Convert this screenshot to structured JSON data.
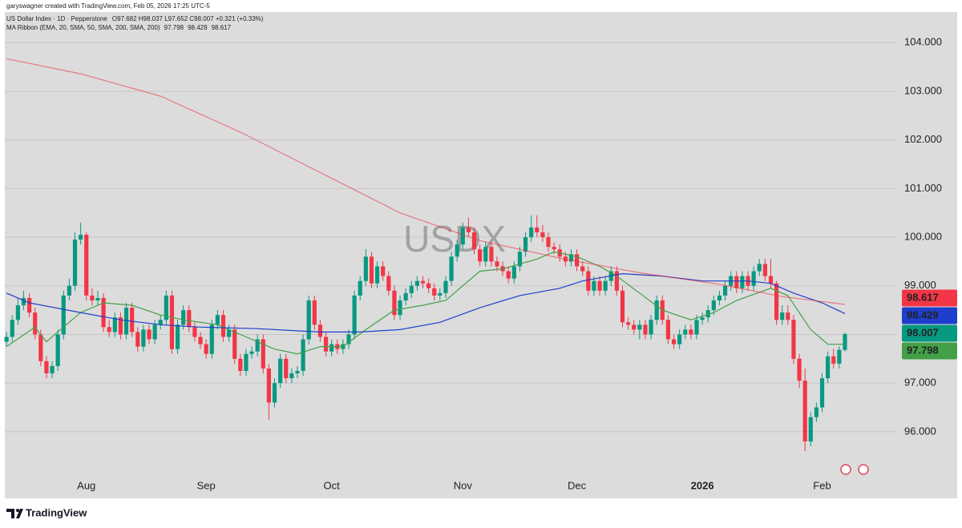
{
  "header": {
    "author": "garyswagner created with TradingView.com, Feb 05, 2026 17:25 UTC-5"
  },
  "footer": {
    "logo_text": "TradingView"
  },
  "chart_data": {
    "type": "candlestick",
    "title": "US Dollar Index · 1D · Pepperstone",
    "ohlc_text": "O97.682 H98.037 L97.652 C98.007 +0.321 (+0.33%)",
    "indicator": "MA Ribbon (EMA, 20, SMA, 50, SMA, 200, SMA, 200)",
    "watermark": "USDX",
    "up_color": "#089981",
    "down_color": "#f23645",
    "xlim": [
      -0.3,
      156
    ],
    "xticks": [
      {
        "value": 14,
        "label": "Aug"
      },
      {
        "value": 35,
        "label": "Sep"
      },
      {
        "value": 57,
        "label": "Oct"
      },
      {
        "value": 80,
        "label": "Nov"
      },
      {
        "value": 100,
        "label": "Dec"
      },
      {
        "value": 122,
        "label": "2026"
      },
      {
        "value": 143,
        "label": "Feb"
      }
    ],
    "ylim": [
      94.63,
      104.63
    ],
    "yticks": [
      {
        "value": 96,
        "label": "96.000"
      },
      {
        "value": 97,
        "label": "97.000"
      },
      {
        "value": 98,
        "label": "98.000"
      },
      {
        "value": 99,
        "label": "99.000"
      },
      {
        "value": 100,
        "label": "100.000"
      },
      {
        "value": 101,
        "label": "101.000"
      },
      {
        "value": 102,
        "label": "102.000"
      },
      {
        "value": 103,
        "label": "103.000"
      },
      {
        "value": 104,
        "label": "104.000"
      }
    ],
    "grid": true,
    "candles": {
      "open": [
        97.85,
        97.95,
        98.3,
        98.6,
        98.75,
        98.45,
        98.0,
        97.45,
        97.2,
        97.35,
        98.0,
        98.8,
        99.0,
        99.95,
        100.05,
        98.8,
        98.7,
        98.75,
        98.15,
        98.05,
        98.35,
        98.0,
        98.55,
        98.05,
        97.75,
        98.1,
        97.9,
        98.2,
        98.3,
        98.8,
        97.7,
        98.2,
        98.5,
        98.15,
        97.95,
        97.8,
        97.6,
        98.2,
        98.4,
        97.95,
        98.1,
        97.5,
        97.25,
        97.6,
        97.65,
        97.9,
        97.3,
        96.6,
        97.0,
        97.5,
        97.1,
        97.2,
        97.25,
        97.9,
        98.7,
        98.2,
        97.95,
        97.65,
        97.8,
        97.7,
        97.8,
        98.0,
        98.8,
        99.1,
        99.6,
        99.05,
        99.4,
        99.2,
        98.9,
        98.4,
        98.7,
        98.85,
        99.0,
        99.1,
        99.05,
        98.95,
        98.8,
        98.85,
        99.1,
        99.6,
        99.85,
        100.2,
        100.1,
        99.75,
        99.5,
        99.8,
        99.5,
        99.4,
        99.3,
        99.15,
        99.4,
        99.7,
        100.0,
        100.2,
        100.1,
        100.0,
        99.8,
        99.75,
        99.6,
        99.5,
        99.65,
        99.4,
        99.3,
        98.9,
        99.1,
        98.9,
        99.1,
        99.3,
        98.9,
        98.25,
        98.2,
        98.1,
        98.2,
        98.0,
        98.3,
        98.7,
        98.3,
        97.9,
        97.8,
        98.0,
        98.1,
        98.0,
        98.3,
        98.35,
        98.5,
        98.7,
        98.8,
        99.0,
        99.2,
        98.95,
        99.2,
        99.0,
        99.3,
        99.45,
        99.2,
        99.05,
        98.3,
        98.45,
        98.3,
        97.5,
        97.05,
        95.8,
        96.3,
        96.5,
        97.1,
        97.55,
        97.4,
        97.682
      ],
      "high": [
        98.05,
        98.4,
        98.75,
        98.9,
        98.85,
        98.55,
        98.1,
        97.55,
        97.45,
        98.1,
        98.9,
        99.15,
        100.1,
        100.3,
        100.1,
        98.95,
        98.9,
        98.85,
        98.3,
        98.45,
        98.45,
        98.65,
        98.65,
        98.15,
        98.2,
        98.2,
        98.3,
        98.4,
        98.9,
        98.9,
        98.3,
        98.6,
        98.6,
        98.25,
        98.05,
        97.9,
        98.3,
        98.5,
        98.5,
        98.2,
        98.2,
        97.6,
        97.7,
        97.75,
        98.0,
        98.0,
        97.4,
        97.1,
        97.6,
        97.6,
        97.3,
        97.35,
        98.0,
        98.8,
        98.8,
        98.3,
        98.05,
        97.9,
        97.9,
        97.9,
        98.1,
        98.9,
        99.2,
        99.75,
        99.7,
        99.5,
        99.5,
        99.3,
        99.0,
        98.8,
        98.95,
        99.1,
        99.2,
        99.2,
        99.15,
        99.05,
        98.95,
        99.2,
        99.7,
        99.95,
        100.3,
        100.4,
        100.2,
        99.85,
        99.9,
        99.9,
        99.6,
        99.5,
        99.4,
        99.5,
        99.8,
        100.1,
        100.45,
        100.45,
        100.25,
        100.1,
        99.9,
        99.85,
        99.7,
        99.75,
        99.75,
        99.5,
        99.4,
        99.2,
        99.2,
        99.2,
        99.4,
        99.4,
        99.0,
        98.35,
        98.3,
        98.3,
        98.3,
        98.4,
        98.8,
        98.8,
        98.4,
        98.0,
        98.1,
        98.2,
        98.2,
        98.4,
        98.45,
        98.6,
        98.8,
        98.9,
        99.1,
        99.3,
        99.3,
        99.3,
        99.3,
        99.4,
        99.55,
        99.55,
        99.55,
        99.1,
        98.6,
        98.6,
        98.4,
        97.6,
        97.3,
        96.4,
        96.6,
        97.2,
        97.65,
        97.7,
        97.75,
        98.037
      ],
      "low": [
        97.75,
        97.85,
        98.2,
        98.5,
        98.35,
        97.9,
        97.35,
        97.1,
        97.1,
        97.25,
        97.9,
        98.7,
        98.9,
        99.85,
        98.7,
        98.6,
        98.6,
        98.05,
        97.95,
        97.95,
        97.9,
        97.9,
        97.95,
        97.65,
        97.65,
        97.8,
        97.8,
        98.1,
        98.2,
        97.6,
        97.6,
        98.1,
        98.05,
        97.85,
        97.7,
        97.5,
        97.5,
        98.1,
        97.85,
        97.85,
        97.4,
        97.15,
        97.15,
        97.5,
        97.55,
        97.2,
        96.25,
        96.5,
        96.9,
        97.0,
        97.0,
        97.1,
        97.15,
        97.8,
        98.1,
        97.85,
        97.55,
        97.55,
        97.6,
        97.6,
        97.7,
        97.9,
        98.7,
        99.0,
        98.95,
        98.95,
        99.1,
        98.8,
        98.3,
        98.3,
        98.6,
        98.75,
        98.9,
        98.95,
        98.85,
        98.7,
        98.7,
        98.75,
        99.0,
        99.5,
        99.75,
        100.0,
        99.65,
        99.4,
        99.4,
        99.4,
        99.3,
        99.2,
        99.05,
        99.05,
        99.3,
        99.6,
        99.9,
        100.0,
        99.9,
        99.7,
        99.65,
        99.5,
        99.4,
        99.4,
        99.3,
        99.2,
        98.8,
        98.8,
        98.8,
        98.8,
        99.0,
        98.8,
        98.15,
        98.1,
        98.0,
        97.9,
        97.9,
        97.9,
        98.2,
        98.2,
        97.8,
        97.7,
        97.7,
        97.9,
        97.9,
        97.9,
        98.2,
        98.25,
        98.4,
        98.6,
        98.7,
        98.9,
        98.85,
        98.85,
        98.9,
        98.9,
        99.2,
        99.1,
        98.95,
        98.2,
        98.2,
        98.2,
        97.4,
        96.9,
        95.6,
        95.7,
        96.2,
        96.4,
        97.0,
        97.3,
        97.3,
        97.652
      ],
      "close": [
        97.95,
        98.3,
        98.6,
        98.75,
        98.45,
        98.0,
        97.45,
        97.2,
        97.35,
        98.0,
        98.8,
        99.0,
        99.95,
        100.05,
        98.8,
        98.7,
        98.75,
        98.15,
        98.05,
        98.35,
        98.0,
        98.55,
        98.05,
        97.75,
        98.1,
        97.9,
        98.2,
        98.3,
        98.8,
        97.7,
        98.2,
        98.5,
        98.15,
        97.95,
        97.8,
        97.6,
        98.2,
        98.4,
        97.95,
        98.1,
        97.5,
        97.25,
        97.6,
        97.65,
        97.9,
        97.3,
        96.6,
        97.0,
        97.5,
        97.1,
        97.2,
        97.25,
        97.9,
        98.7,
        98.2,
        97.95,
        97.65,
        97.8,
        97.7,
        97.8,
        98.0,
        98.8,
        99.1,
        99.6,
        99.05,
        99.4,
        99.2,
        98.9,
        98.4,
        98.7,
        98.85,
        99.0,
        99.1,
        99.05,
        98.95,
        98.8,
        98.85,
        99.1,
        99.6,
        99.85,
        100.2,
        100.1,
        99.75,
        99.5,
        99.8,
        99.5,
        99.4,
        99.3,
        99.15,
        99.4,
        99.7,
        100.0,
        100.2,
        100.1,
        100.0,
        99.8,
        99.75,
        99.6,
        99.5,
        99.65,
        99.4,
        99.3,
        98.9,
        99.1,
        98.9,
        99.1,
        99.3,
        98.9,
        98.25,
        98.2,
        98.1,
        98.2,
        98.0,
        98.3,
        98.7,
        98.3,
        97.9,
        97.8,
        98.0,
        98.1,
        98.0,
        98.3,
        98.35,
        98.5,
        98.7,
        98.8,
        99.0,
        99.2,
        98.95,
        99.2,
        99.0,
        99.3,
        99.45,
        99.2,
        99.05,
        98.3,
        98.45,
        98.3,
        97.5,
        97.05,
        95.8,
        96.3,
        96.5,
        97.1,
        97.55,
        97.4,
        97.682,
        98.007
      ]
    },
    "series": [
      {
        "color": "#43a047",
        "x": [
          0,
          5,
          7,
          13,
          17,
          22,
          27,
          31,
          37,
          42,
          47,
          51,
          55,
          59,
          63,
          68,
          73,
          77,
          80,
          83,
          87,
          93,
          96,
          100,
          104,
          107,
          111,
          115,
          120,
          124,
          128,
          134,
          137,
          141,
          144,
          147
        ],
        "values": [
          97.75,
          98.15,
          97.85,
          98.45,
          98.65,
          98.6,
          98.4,
          98.3,
          98.2,
          97.95,
          97.7,
          97.6,
          97.75,
          97.75,
          98.1,
          98.5,
          98.6,
          98.7,
          99.0,
          99.3,
          99.35,
          99.55,
          99.7,
          99.6,
          99.4,
          99.2,
          98.85,
          98.5,
          98.3,
          98.45,
          98.7,
          98.95,
          98.8,
          98.1,
          97.8,
          97.798
        ]
      },
      {
        "color": "#1e3fcc",
        "x": [
          0,
          4,
          13,
          20,
          27,
          34,
          44,
          55,
          62,
          69,
          76,
          83,
          90,
          97,
          101,
          108,
          115,
          122,
          130,
          134,
          138,
          143,
          147
        ],
        "values": [
          98.85,
          98.65,
          98.45,
          98.3,
          98.2,
          98.15,
          98.12,
          98.05,
          98.05,
          98.1,
          98.25,
          98.55,
          98.8,
          98.95,
          99.1,
          99.25,
          99.2,
          99.1,
          99.1,
          99.05,
          98.85,
          98.65,
          98.429
        ]
      },
      {
        "color": "#f23645",
        "x": [
          0,
          13,
          27,
          41,
          55,
          69,
          83,
          97,
          111,
          125,
          136,
          147
        ],
        "values": [
          103.67,
          103.36,
          102.9,
          102.16,
          101.33,
          100.5,
          99.93,
          99.57,
          99.27,
          99.03,
          98.78,
          98.617
        ]
      }
    ]
  }
}
